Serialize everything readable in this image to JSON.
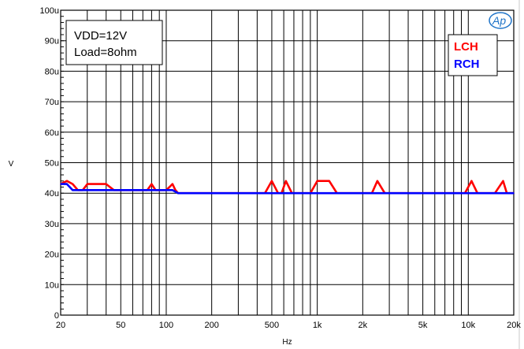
{
  "chart_data": {
    "type": "line",
    "xscale": "log",
    "xlim": [
      20,
      20000
    ],
    "ylim": [
      0,
      100
    ],
    "xlabel": "Hz",
    "ylabel": "V",
    "grid": true,
    "x_ticks": [
      20,
      50,
      100,
      200,
      500,
      1000,
      2000,
      5000,
      10000,
      20000
    ],
    "x_tick_labels": [
      "20",
      "50",
      "100",
      "200",
      "500",
      "1k",
      "2k",
      "5k",
      "10k",
      "20k"
    ],
    "y_ticks": [
      0,
      10,
      20,
      30,
      40,
      50,
      60,
      70,
      80,
      90,
      100
    ],
    "y_tick_labels": [
      "0",
      "10u",
      "20u",
      "30u",
      "40u",
      "50u",
      "60u",
      "70u",
      "80u",
      "90u",
      "100u"
    ],
    "annotation": {
      "line1": "VDD=12V",
      "line2": "Load=8ohm"
    },
    "logo": "Ap",
    "legend_position": "top-right",
    "series": [
      {
        "name": "LCH",
        "color": "#ff0000",
        "x": [
          20,
          22,
          24,
          26,
          28,
          30,
          33,
          36,
          40,
          45,
          50,
          55,
          60,
          65,
          70,
          75,
          80,
          85,
          90,
          95,
          100,
          105,
          110,
          115,
          120,
          130,
          200,
          300,
          450,
          500,
          550,
          580,
          620,
          680,
          750,
          900,
          1000,
          1200,
          1350,
          2000,
          2300,
          2500,
          2800,
          3500,
          5000,
          9500,
          10500,
          11500,
          15000,
          17000,
          18000,
          20000
        ],
        "values": [
          43,
          44,
          43,
          41,
          41,
          43,
          43,
          43,
          43,
          41,
          41,
          41,
          41,
          41,
          41,
          41,
          43,
          41,
          41,
          41,
          41,
          42,
          43,
          41,
          40,
          40,
          40,
          40,
          40,
          44,
          40,
          40,
          44,
          40,
          40,
          40,
          44,
          44,
          40,
          40,
          40,
          44,
          40,
          40,
          40,
          40,
          44,
          40,
          40,
          44,
          40,
          40
        ]
      },
      {
        "name": "RCH",
        "color": "#0000ff",
        "x": [
          20,
          22,
          24,
          26,
          30,
          50,
          100,
          110,
          120,
          200,
          1000,
          5000,
          20000
        ],
        "values": [
          43,
          43,
          41,
          41,
          41,
          41,
          41,
          41,
          40,
          40,
          40,
          40,
          40
        ]
      }
    ]
  }
}
